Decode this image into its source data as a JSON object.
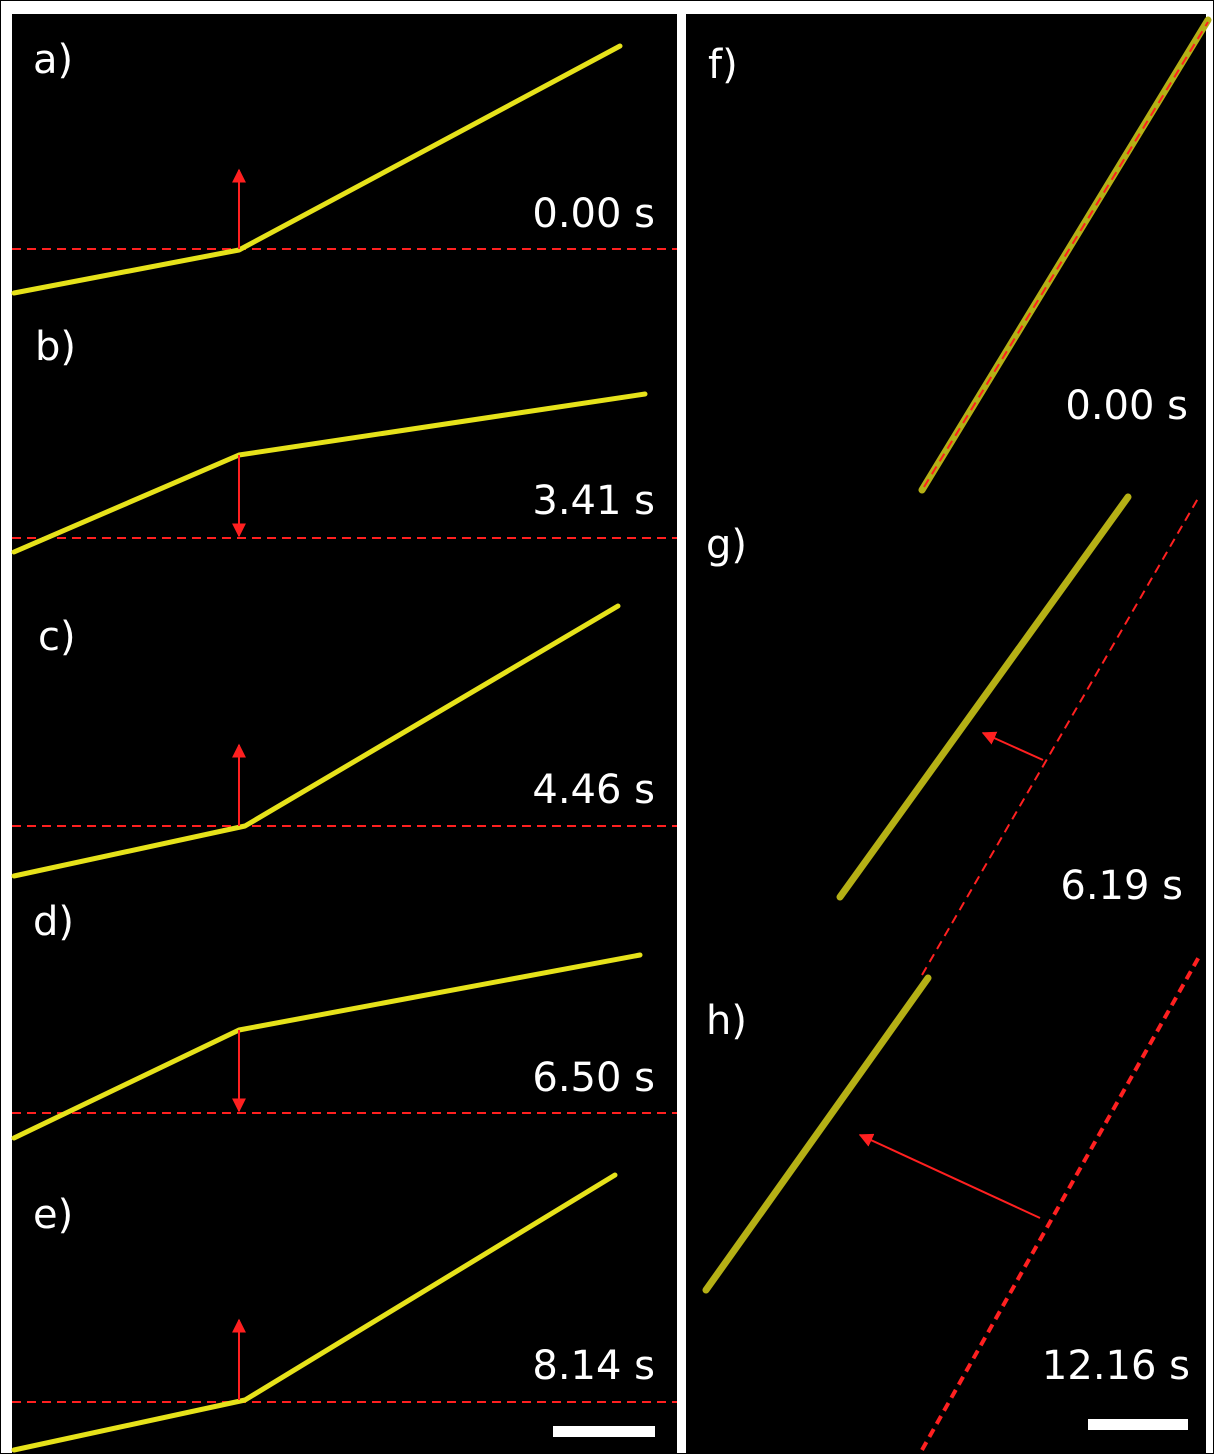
{
  "panels": [
    {
      "label": "a)",
      "time": "0.00 s"
    },
    {
      "label": "b)",
      "time": "3.41 s"
    },
    {
      "label": "c)",
      "time": "4.46 s"
    },
    {
      "label": "d)",
      "time": "6.50 s"
    },
    {
      "label": "e)",
      "time": "8.14 s"
    },
    {
      "label": "f)",
      "time": "0.00 s"
    },
    {
      "label": "g)",
      "time": "6.19 s"
    },
    {
      "label": "h)",
      "time": "12.16 s"
    }
  ]
}
